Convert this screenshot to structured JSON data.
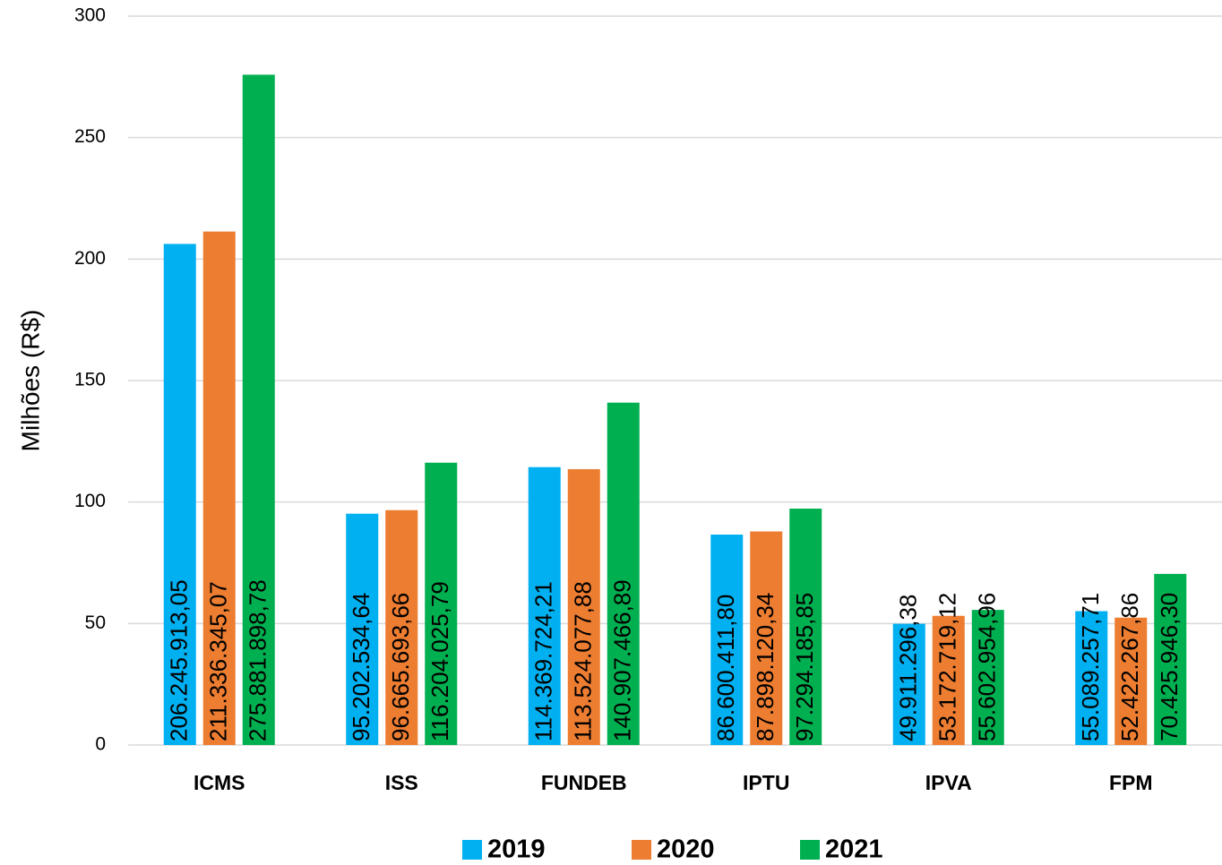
{
  "chart_data": {
    "type": "bar",
    "y_label": "Milhões (R$)",
    "categories": [
      "ICMS",
      "ISS",
      "FUNDEB",
      "IPTU",
      "IPVA",
      "FPM"
    ],
    "series": [
      {
        "name": "2019",
        "color": "#00b0f0",
        "values": [
          206.24591305,
          95.20253464,
          114.36972421,
          86.6004118,
          49.91129638,
          55.08925771
        ],
        "value_labels": [
          "206.245.913,05",
          "95.202.534,64",
          "114.369.724,21",
          "86.600.411,80",
          "49.911.296,38",
          "55.089.257,71"
        ]
      },
      {
        "name": "2020",
        "color": "#ed7d31",
        "values": [
          211.33634507,
          96.66569366,
          113.52407788,
          87.89812034,
          53.17271912,
          52.42226786
        ],
        "value_labels": [
          "211.336.345,07",
          "96.665.693,66",
          "113.524.077,88",
          "87.898.120,34",
          "53.172.719,12",
          "52.422.267,86"
        ]
      },
      {
        "name": "2021",
        "color": "#00b050",
        "values": [
          275.88189878,
          116.20402579,
          140.90746689,
          97.29418585,
          55.60295496,
          70.4259463
        ],
        "value_labels": [
          "275.881.898,78",
          "116.204.025,79",
          "140.907.466,89",
          "97.294.185,85",
          "55.602.954,96",
          "70.425.946,30"
        ]
      }
    ],
    "ylim": [
      0,
      300
    ],
    "yticks": [
      0,
      50,
      100,
      150,
      200,
      250,
      300
    ],
    "grid": true,
    "legend": "bottom"
  }
}
